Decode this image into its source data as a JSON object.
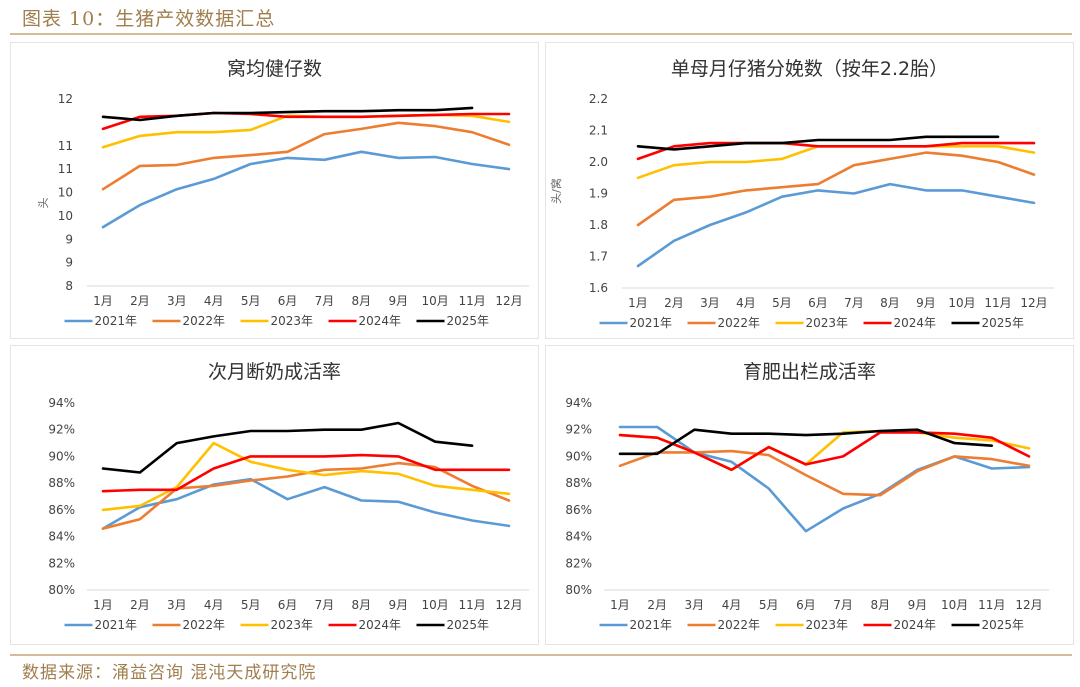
{
  "figure": {
    "title": "图表 10：生猪产效数据汇总",
    "source": "数据来源：涌益咨询 混沌天成研究院"
  },
  "colors": {
    "2021年": "#5b9bd5",
    "2022年": "#ed7d31",
    "2023年": "#ffc000",
    "2024年": "#ff0000",
    "2025年": "#000000"
  },
  "chart_data": [
    {
      "type": "line",
      "title": "窝均健仔数",
      "xlabel": "",
      "ylabel": "头",
      "categories": [
        "1月",
        "2月",
        "3月",
        "4月",
        "5月",
        "6月",
        "7月",
        "8月",
        "9月",
        "10月",
        "11月",
        "12月"
      ],
      "ylim": [
        8,
        12
      ],
      "yticks": [
        8,
        8.5,
        9,
        9.5,
        10,
        10.5,
        11,
        11.5,
        12
      ],
      "ytick_labels": [
        "8",
        "9",
        "9",
        "10",
        "10",
        "11",
        "11",
        "12"
      ],
      "ytick_label_values": [
        8,
        8.5,
        9,
        9.5,
        10,
        10.5,
        11,
        12
      ],
      "grid": false,
      "legend": "bottom",
      "series": [
        {
          "name": "2021年",
          "values": [
            9.26,
            9.73,
            10.07,
            10.29,
            10.61,
            10.74,
            10.7,
            10.87,
            10.74,
            10.76,
            10.61,
            10.5
          ]
        },
        {
          "name": "2022年",
          "values": [
            10.07,
            10.57,
            10.59,
            10.74,
            10.8,
            10.87,
            11.25,
            11.36,
            11.49,
            11.42,
            11.29,
            11.02
          ]
        },
        {
          "name": "2023年",
          "values": [
            10.97,
            11.21,
            11.29,
            11.29,
            11.34,
            11.64,
            11.62,
            11.62,
            11.64,
            11.66,
            11.64,
            11.51
          ]
        },
        {
          "name": "2024年",
          "values": [
            11.36,
            11.62,
            11.64,
            11.7,
            11.68,
            11.62,
            11.62,
            11.62,
            11.64,
            11.66,
            11.68,
            11.68
          ]
        },
        {
          "name": "2025年",
          "values": [
            11.62,
            11.55,
            11.64,
            11.7,
            11.7,
            11.72,
            11.74,
            11.74,
            11.76,
            11.76,
            11.81
          ]
        }
      ]
    },
    {
      "type": "line",
      "title": "单母月仔猪分娩数（按年2.2胎）",
      "xlabel": "",
      "ylabel": "头/窝",
      "categories": [
        "1月",
        "2月",
        "3月",
        "4月",
        "5月",
        "6月",
        "7月",
        "8月",
        "9月",
        "10月",
        "11月",
        "12月"
      ],
      "ylim": [
        1.6,
        2.2
      ],
      "yticks": [
        1.6,
        1.7,
        1.8,
        1.9,
        2.0,
        2.1,
        2.2
      ],
      "ytick_labels": [
        "1.6",
        "1.7",
        "1.8",
        "1.9",
        "2.0",
        "2.1",
        "2.2"
      ],
      "grid": false,
      "legend": "bottom",
      "series": [
        {
          "name": "2021年",
          "values": [
            1.67,
            1.75,
            1.8,
            1.84,
            1.89,
            1.91,
            1.9,
            1.93,
            1.91,
            1.91,
            1.89,
            1.87
          ]
        },
        {
          "name": "2022年",
          "values": [
            1.8,
            1.88,
            1.89,
            1.91,
            1.92,
            1.93,
            1.99,
            2.01,
            2.03,
            2.02,
            2.0,
            1.96
          ]
        },
        {
          "name": "2023年",
          "values": [
            1.95,
            1.99,
            2.0,
            2.0,
            2.01,
            2.05,
            2.05,
            2.05,
            2.05,
            2.05,
            2.05,
            2.03
          ]
        },
        {
          "name": "2024年",
          "values": [
            2.01,
            2.05,
            2.06,
            2.06,
            2.06,
            2.05,
            2.05,
            2.05,
            2.05,
            2.06,
            2.06,
            2.06
          ]
        },
        {
          "name": "2025年",
          "values": [
            2.05,
            2.04,
            2.05,
            2.06,
            2.06,
            2.07,
            2.07,
            2.07,
            2.08,
            2.08,
            2.08
          ]
        }
      ]
    },
    {
      "type": "line",
      "title": "次月断奶成活率",
      "xlabel": "",
      "ylabel": "",
      "categories": [
        "1月",
        "2月",
        "3月",
        "4月",
        "5月",
        "6月",
        "7月",
        "8月",
        "9月",
        "10月",
        "11月",
        "12月"
      ],
      "ylim": [
        80,
        94
      ],
      "yticks": [
        80,
        82,
        84,
        86,
        88,
        90,
        92,
        94
      ],
      "ytick_labels": [
        "80%",
        "82%",
        "84%",
        "86%",
        "88%",
        "90%",
        "92%",
        "94%"
      ],
      "grid": false,
      "legend": "bottom",
      "series": [
        {
          "name": "2021年",
          "values": [
            84.6,
            86.2,
            86.8,
            87.9,
            88.3,
            86.8,
            87.7,
            86.7,
            86.6,
            85.8,
            85.2,
            84.8
          ]
        },
        {
          "name": "2022年",
          "values": [
            84.6,
            85.3,
            87.6,
            87.8,
            88.2,
            88.5,
            89.0,
            89.1,
            89.5,
            89.2,
            87.8,
            86.7
          ]
        },
        {
          "name": "2023年",
          "values": [
            86.0,
            86.3,
            87.7,
            91.0,
            89.6,
            89.0,
            88.6,
            88.9,
            88.7,
            87.8,
            87.5,
            87.2
          ]
        },
        {
          "name": "2024年",
          "values": [
            87.4,
            87.5,
            87.5,
            89.1,
            90.0,
            90.0,
            90.0,
            90.1,
            90.0,
            89.0,
            89.0,
            89.0
          ]
        },
        {
          "name": "2025年",
          "values": [
            89.1,
            88.8,
            91.0,
            91.5,
            91.9,
            91.9,
            92.0,
            92.0,
            92.5,
            91.1,
            90.8
          ]
        }
      ]
    },
    {
      "type": "line",
      "title": "育肥出栏成活率",
      "xlabel": "",
      "ylabel": "",
      "categories": [
        "1月",
        "2月",
        "3月",
        "4月",
        "5月",
        "6月",
        "7月",
        "8月",
        "9月",
        "10月",
        "11月",
        "12月"
      ],
      "ylim": [
        80,
        94
      ],
      "yticks": [
        80,
        82,
        84,
        86,
        88,
        90,
        92,
        94
      ],
      "ytick_labels": [
        "80%",
        "82%",
        "84%",
        "86%",
        "88%",
        "90%",
        "92%",
        "94%"
      ],
      "grid": false,
      "legend": "bottom",
      "series": [
        {
          "name": "2021年",
          "values": [
            92.2,
            92.2,
            90.3,
            89.6,
            87.6,
            84.4,
            86.1,
            87.2,
            89.0,
            90.0,
            89.1,
            89.2
          ]
        },
        {
          "name": "2022年",
          "values": [
            89.3,
            90.3,
            90.3,
            90.4,
            90.1,
            88.6,
            87.2,
            87.1,
            88.9,
            90.0,
            89.8,
            89.3
          ]
        },
        {
          "name": "2023年",
          "values": [
            91.6,
            91.4,
            90.3,
            89.0,
            90.7,
            89.4,
            91.8,
            91.9,
            91.8,
            91.4,
            91.2,
            90.6
          ]
        },
        {
          "name": "2024年",
          "values": [
            91.6,
            91.4,
            90.3,
            89.0,
            90.7,
            89.4,
            90.0,
            91.8,
            91.8,
            91.7,
            91.4,
            90.0
          ]
        },
        {
          "name": "2025年",
          "values": [
            90.2,
            90.2,
            92.0,
            91.7,
            91.7,
            91.6,
            91.7,
            91.9,
            92.0,
            91.0,
            90.8
          ]
        }
      ]
    }
  ]
}
